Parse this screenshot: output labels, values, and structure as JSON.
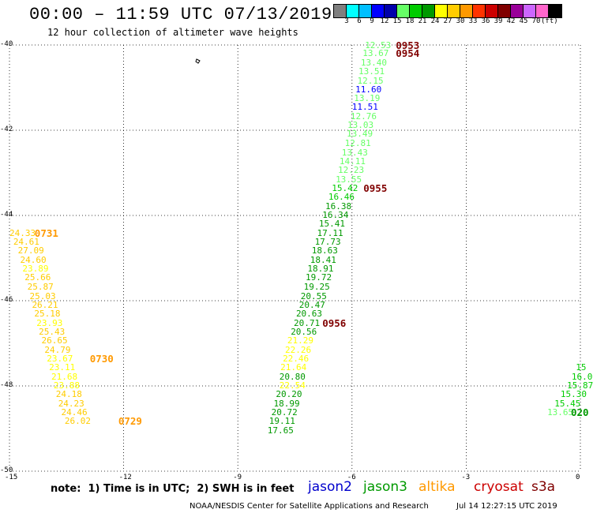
{
  "header": {
    "title": "00:00 – 11:59 UTC 07/13/2019",
    "subtitle": "12 hour collection of altimeter wave heights"
  },
  "legend": {
    "colors": [
      "#7f7f7f",
      "#00ffff",
      "#00bfff",
      "#0000ff",
      "#0000aa",
      "#66ff66",
      "#00cc00",
      "#009900",
      "#ffff00",
      "#ffcc00",
      "#ff9900",
      "#ff3300",
      "#cc0000",
      "#800000",
      "#990099",
      "#cc66ff",
      "#ff66cc",
      "#000000"
    ],
    "labels": [
      "3",
      "6",
      "9",
      "12",
      "15",
      "18",
      "21",
      "24",
      "27",
      "30",
      "33",
      "36",
      "39",
      "42",
      "45",
      "70",
      "(ft)"
    ]
  },
  "axes": {
    "x_ticks": [
      "-15",
      "-12",
      "-9",
      "-6",
      "-3",
      "0"
    ],
    "y_ticks": [
      "-40",
      "-42",
      "-44",
      "-46",
      "-48",
      "-50"
    ]
  },
  "chart_data": {
    "type": "scatter",
    "x_range": [
      -15,
      0
    ],
    "y_range": [
      -50,
      -40
    ],
    "x_ticks": [
      "-15",
      "-12",
      "-9",
      "-6",
      "-3",
      "0"
    ],
    "y_ticks": [
      "-40",
      "-42",
      "-44",
      "-46",
      "-48",
      "-50"
    ],
    "grid": true,
    "color_scale_ft": [
      3,
      6,
      9,
      12,
      15,
      18,
      21,
      24,
      27,
      30,
      33,
      36,
      39,
      42,
      45,
      70
    ],
    "points": [
      {
        "x": -5.66,
        "y": -40.0,
        "v": "12.53",
        "c": "#66ff66"
      },
      {
        "x": -5.72,
        "y": -40.19,
        "v": "13.67",
        "c": "#66ff66"
      },
      {
        "x": -5.77,
        "y": -40.4,
        "v": "13.40",
        "c": "#66ff66"
      },
      {
        "x": -5.83,
        "y": -40.62,
        "v": "13.51",
        "c": "#66ff66"
      },
      {
        "x": -5.86,
        "y": -40.84,
        "v": "12.15",
        "c": "#66ff66"
      },
      {
        "x": -5.91,
        "y": -41.03,
        "v": "11.60",
        "c": "#0000ff"
      },
      {
        "x": -5.95,
        "y": -41.24,
        "v": "13.19",
        "c": "#66ff66"
      },
      {
        "x": -6.0,
        "y": -41.45,
        "v": "11.51",
        "c": "#0000ff"
      },
      {
        "x": -6.04,
        "y": -41.66,
        "v": "12.76",
        "c": "#66ff66"
      },
      {
        "x": -6.12,
        "y": -41.87,
        "v": "13.03",
        "c": "#66ff66"
      },
      {
        "x": -6.14,
        "y": -42.08,
        "v": "13.49",
        "c": "#66ff66"
      },
      {
        "x": -6.19,
        "y": -42.29,
        "v": "12.81",
        "c": "#66ff66"
      },
      {
        "x": -6.27,
        "y": -42.51,
        "v": "13.43",
        "c": "#66ff66"
      },
      {
        "x": -6.33,
        "y": -42.72,
        "v": "14.11",
        "c": "#66ff66"
      },
      {
        "x": -6.37,
        "y": -42.93,
        "v": "12.23",
        "c": "#66ff66"
      },
      {
        "x": -6.43,
        "y": -43.14,
        "v": "13.55",
        "c": "#66ff66"
      },
      {
        "x": -6.53,
        "y": -43.35,
        "v": "15.42",
        "c": "#00cc00"
      },
      {
        "x": -6.62,
        "y": -43.56,
        "v": "16.46",
        "c": "#00cc00"
      },
      {
        "x": -6.7,
        "y": -43.77,
        "v": "16.38",
        "c": "#009900"
      },
      {
        "x": -6.78,
        "y": -43.98,
        "v": "16.34",
        "c": "#009900"
      },
      {
        "x": -6.87,
        "y": -44.19,
        "v": "15.41",
        "c": "#009900"
      },
      {
        "x": -6.92,
        "y": -44.4,
        "v": "17.11",
        "c": "#009900"
      },
      {
        "x": -6.98,
        "y": -44.61,
        "v": "17.73",
        "c": "#009900"
      },
      {
        "x": -7.06,
        "y": -44.82,
        "v": "18.63",
        "c": "#009900"
      },
      {
        "x": -7.1,
        "y": -45.03,
        "v": "18.41",
        "c": "#009900"
      },
      {
        "x": -7.17,
        "y": -45.24,
        "v": "18.91",
        "c": "#009900"
      },
      {
        "x": -7.22,
        "y": -45.45,
        "v": "19.72",
        "c": "#009900"
      },
      {
        "x": -7.27,
        "y": -45.66,
        "v": "19.25",
        "c": "#009900"
      },
      {
        "x": -7.35,
        "y": -45.88,
        "v": "20.55",
        "c": "#009900"
      },
      {
        "x": -7.39,
        "y": -46.09,
        "v": "20.47",
        "c": "#009900"
      },
      {
        "x": -7.47,
        "y": -46.3,
        "v": "20.63",
        "c": "#009900"
      },
      {
        "x": -7.53,
        "y": -46.51,
        "v": "20.71",
        "c": "#009900"
      },
      {
        "x": -7.61,
        "y": -46.72,
        "v": "20.56",
        "c": "#009900"
      },
      {
        "x": -7.7,
        "y": -46.93,
        "v": "21.29",
        "c": "#ffff00"
      },
      {
        "x": -7.76,
        "y": -47.14,
        "v": "22.26",
        "c": "#ffff00"
      },
      {
        "x": -7.82,
        "y": -47.35,
        "v": "22.46",
        "c": "#ffff00"
      },
      {
        "x": -7.88,
        "y": -47.56,
        "v": "21.64",
        "c": "#ffff00"
      },
      {
        "x": -7.91,
        "y": -47.77,
        "v": "20.80",
        "c": "#009900"
      },
      {
        "x": -7.91,
        "y": -47.98,
        "v": "22.54",
        "c": "#ffff00"
      },
      {
        "x": -8.0,
        "y": -48.19,
        "v": "20.20",
        "c": "#009900"
      },
      {
        "x": -8.06,
        "y": -48.4,
        "v": "18.99",
        "c": "#009900"
      },
      {
        "x": -8.12,
        "y": -48.61,
        "v": "20.72",
        "c": "#009900"
      },
      {
        "x": -8.18,
        "y": -48.82,
        "v": "19.11",
        "c": "#009900"
      },
      {
        "x": -8.22,
        "y": -49.03,
        "v": "17.65",
        "c": "#009900"
      },
      {
        "x": -15.0,
        "y": -44.4,
        "v": "24.33",
        "c": "#ffcc00"
      },
      {
        "x": -14.9,
        "y": -44.61,
        "v": "24.61",
        "c": "#ffcc00"
      },
      {
        "x": -14.78,
        "y": -44.82,
        "v": "27.09",
        "c": "#ffcc00"
      },
      {
        "x": -14.72,
        "y": -45.03,
        "v": "24.60",
        "c": "#ffcc00"
      },
      {
        "x": -14.66,
        "y": -45.24,
        "v": "23.89",
        "c": "#ffff00"
      },
      {
        "x": -14.6,
        "y": -45.45,
        "v": "25.66",
        "c": "#ffcc00"
      },
      {
        "x": -14.53,
        "y": -45.66,
        "v": "25.87",
        "c": "#ffcc00"
      },
      {
        "x": -14.47,
        "y": -45.88,
        "v": "25.03",
        "c": "#ffcc00"
      },
      {
        "x": -14.41,
        "y": -46.09,
        "v": "26.21",
        "c": "#ffcc00"
      },
      {
        "x": -14.35,
        "y": -46.3,
        "v": "25.18",
        "c": "#ffcc00"
      },
      {
        "x": -14.29,
        "y": -46.51,
        "v": "23.93",
        "c": "#ffff00"
      },
      {
        "x": -14.23,
        "y": -46.72,
        "v": "25.43",
        "c": "#ffcc00"
      },
      {
        "x": -14.16,
        "y": -46.93,
        "v": "26.65",
        "c": "#ffcc00"
      },
      {
        "x": -14.08,
        "y": -47.14,
        "v": "24.79",
        "c": "#ffcc00"
      },
      {
        "x": -14.02,
        "y": -47.35,
        "v": "23.67",
        "c": "#ffff00"
      },
      {
        "x": -13.96,
        "y": -47.56,
        "v": "23.11",
        "c": "#ffff00"
      },
      {
        "x": -13.9,
        "y": -47.77,
        "v": "21.68",
        "c": "#ffff00"
      },
      {
        "x": -13.84,
        "y": -47.98,
        "v": "23.88",
        "c": "#ffff00"
      },
      {
        "x": -13.78,
        "y": -48.19,
        "v": "24.18",
        "c": "#ffcc00"
      },
      {
        "x": -13.72,
        "y": -48.4,
        "v": "24.23",
        "c": "#ffcc00"
      },
      {
        "x": -13.64,
        "y": -48.61,
        "v": "24.46",
        "c": "#ffcc00"
      },
      {
        "x": -13.55,
        "y": -48.82,
        "v": "26.02",
        "c": "#ffcc00"
      },
      {
        "x": -0.12,
        "y": -47.56,
        "v": "15",
        "c": "#00cc00"
      },
      {
        "x": -0.23,
        "y": -47.77,
        "v": "16.0",
        "c": "#00cc00"
      },
      {
        "x": -0.35,
        "y": -47.98,
        "v": "15.87",
        "c": "#00cc00"
      },
      {
        "x": -0.52,
        "y": -48.19,
        "v": "15.30",
        "c": "#00cc00"
      },
      {
        "x": -0.68,
        "y": -48.4,
        "v": "15.45",
        "c": "#00cc00"
      },
      {
        "x": -0.87,
        "y": -48.61,
        "v": "13.65",
        "c": "#66ff66"
      }
    ],
    "time_labels": [
      {
        "x": -4.85,
        "y": -40.0,
        "t": "0953",
        "c": "#800000"
      },
      {
        "x": -4.85,
        "y": -40.19,
        "t": "0954",
        "c": "#800000"
      },
      {
        "x": -5.7,
        "y": -43.35,
        "t": "0955",
        "c": "#800000"
      },
      {
        "x": -6.78,
        "y": -46.51,
        "t": "0956",
        "c": "#800000"
      },
      {
        "x": -14.34,
        "y": -44.4,
        "t": "0731",
        "c": "#ff9900"
      },
      {
        "x": -12.89,
        "y": -47.35,
        "t": "0730",
        "c": "#ff9900"
      },
      {
        "x": -12.14,
        "y": -48.82,
        "t": "0729",
        "c": "#ff9900"
      },
      {
        "x": -0.25,
        "y": -48.61,
        "t": "020",
        "c": "#009900"
      }
    ]
  },
  "notes": {
    "note_text": "note:  1) Time is in UTC;  2) SWH is in feet",
    "satellites": [
      {
        "name": "jason2",
        "color": "#0000cc"
      },
      {
        "name": "jason3",
        "color": "#009900"
      },
      {
        "name": "altika",
        "color": "#ff9900"
      },
      {
        "name": "cryosat",
        "color": "#cc0000"
      },
      {
        "name": "s3a",
        "color": "#800000"
      }
    ]
  },
  "footer": {
    "org": "NOAA/NESDIS Center for Satellite Applications and Research",
    "timestamp": "Jul 14 12:27:15 UTC 2019"
  }
}
